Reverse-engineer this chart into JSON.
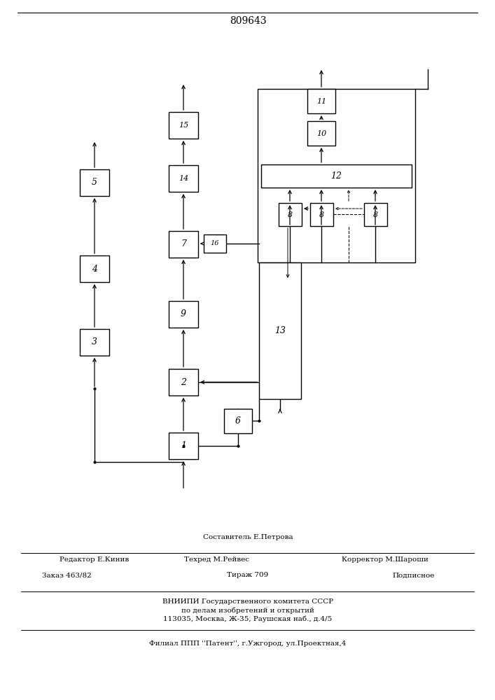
{
  "title": "809643",
  "bg_color": "#ffffff",
  "footer": {
    "line1": "Составитель Е.Петрова",
    "line2_left": "Редактор Е.Кинив",
    "line2_mid": "Техред М.Рейвес",
    "line2_right": "Корректор М.Шароши",
    "line3_left": "Заказ 463/82",
    "line3_mid": "Тираж 709",
    "line3_right": "Подписное",
    "line4": "ВНИИПИ Государственного комитета СССР",
    "line5": "по делам изобретений и открытий",
    "line6": "113035, Москва, Ж-35, Раушская наб., д.4/5",
    "line7": "Филиал ППП ''Патент'', г.Ужгород, ул.Проектная,4"
  }
}
